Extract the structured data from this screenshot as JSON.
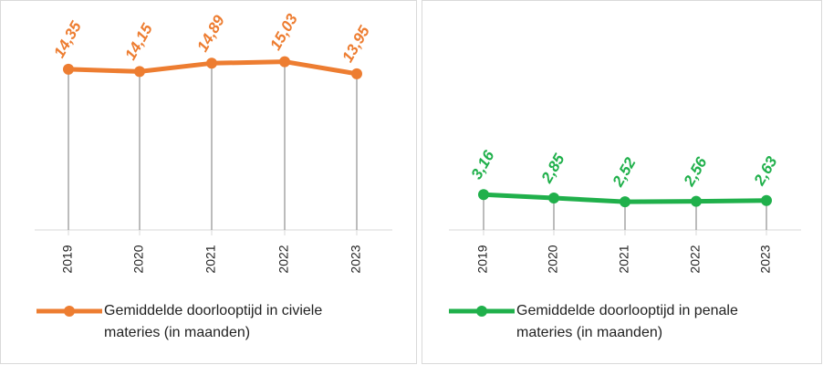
{
  "chart_data": [
    {
      "type": "line",
      "categories": [
        "2019",
        "2020",
        "2021",
        "2022",
        "2023"
      ],
      "series": [
        {
          "name": "Gemiddelde doorlooptijd in civiele materies (in maanden)",
          "color": "#ed7d31",
          "values": [
            14.35,
            14.15,
            14.89,
            15.03,
            13.95
          ],
          "value_labels": [
            "14,35",
            "14,15",
            "14,89",
            "15,03",
            "13,95"
          ]
        }
      ]
    },
    {
      "type": "line",
      "categories": [
        "2019",
        "2020",
        "2021",
        "2022",
        "2023"
      ],
      "series": [
        {
          "name": "Gemiddelde doorlooptijd in penale materies (in maanden)",
          "color": "#20b04b",
          "values": [
            3.16,
            2.85,
            2.52,
            2.56,
            2.63
          ],
          "value_labels": [
            "3,16",
            "2,85",
            "2,52",
            "2,56",
            "2,63"
          ]
        }
      ]
    }
  ]
}
